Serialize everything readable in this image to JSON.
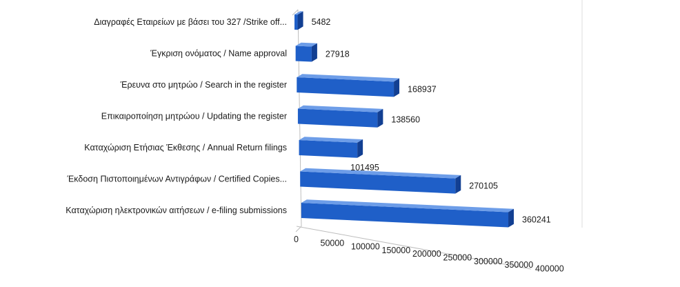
{
  "chart_data": {
    "type": "bar",
    "orientation": "horizontal",
    "style": "3d",
    "categories": [
      "Διαγραφές Εταιρείων  με  βάσει του 327 /Strike off...",
      "Έγκριση ονόματος / Name approval",
      "Έρευνα στο μητρώο / Search in the register",
      "Επικαιροποίηση μητρώου / Updating the register",
      "Καταχώριση Ετήσιας Έκθεσης / Annual Return filings",
      "Έκδοση Πιστοποιημένων Αντιγράφων / Certified Copies...",
      "Καταχώριση ηλεκτρονικών αιτήσεων / e-filing submissions"
    ],
    "values": [
      5482,
      27918,
      168937,
      138560,
      101495,
      270105,
      360241
    ],
    "value_labels": [
      "5482",
      "27918",
      "168937",
      "138560",
      "101495",
      "270105",
      "360241"
    ],
    "x_ticks": [
      "0",
      "50000",
      "100000",
      "150000",
      "200000",
      "250000",
      "300000",
      "350000",
      "400000"
    ],
    "xlim": [
      0,
      400000
    ],
    "grid": false,
    "legend": "none",
    "colors": {
      "bar_front": "#1f5fc8",
      "bar_top": "#6d9de8",
      "bar_end": "#123f92",
      "axis": "#bdbdbd",
      "text": "#1a1a1a"
    }
  }
}
